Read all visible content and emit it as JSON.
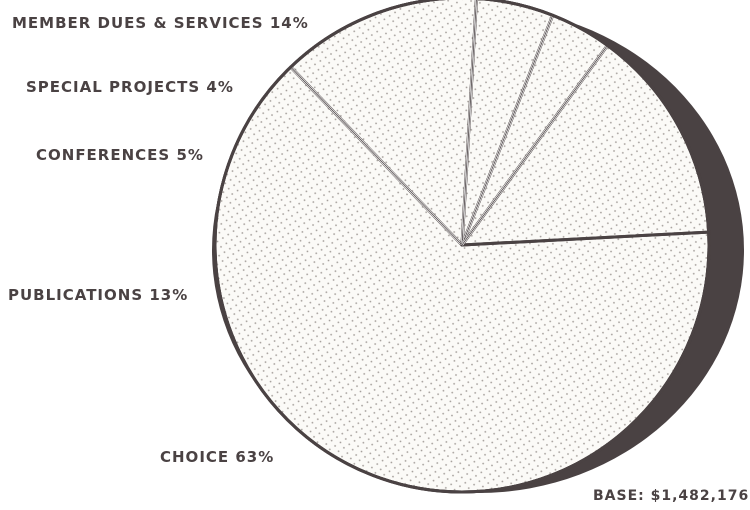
{
  "chart_data": {
    "type": "pie",
    "categories": [
      "CHOICE",
      "PUBLICATIONS",
      "CONFERENCES",
      "SPECIAL PROJECTS",
      "MEMBER DUES & SERVICES"
    ],
    "values": [
      63,
      13,
      5,
      4,
      14
    ],
    "labels": [
      "CHOICE 63%",
      "PUBLICATIONS 13%",
      "CONFERENCES 5%",
      "SPECIAL PROJECTS 4%",
      "MEMBER DUES & SERVICES 14%"
    ],
    "base_label": "BASE: $1,482,176",
    "colors": {
      "slice_fill": "#fbfaf7",
      "dots": "#a39d99",
      "outline": "#4a4243",
      "shadow": "#4a4243",
      "text": "#4a4243"
    }
  }
}
